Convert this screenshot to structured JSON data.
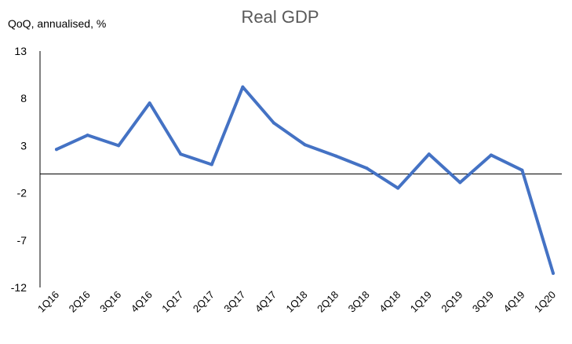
{
  "chart_data": {
    "type": "line",
    "title": "Real GDP",
    "ylabel": "QoQ, annualised, %",
    "xlabel": "",
    "categories": [
      "1Q16",
      "2Q16",
      "3Q16",
      "4Q16",
      "1Q17",
      "2Q17",
      "3Q17",
      "4Q17",
      "1Q18",
      "2Q18",
      "3Q18",
      "4Q18",
      "1Q19",
      "2Q19",
      "3Q19",
      "4Q19",
      "1Q20"
    ],
    "series": [
      {
        "name": "Real GDP",
        "color": "#4472C4",
        "values": [
          2.6,
          4.1,
          3.0,
          7.5,
          2.1,
          1.0,
          9.2,
          5.4,
          3.1,
          1.9,
          0.6,
          -1.5,
          2.1,
          -0.9,
          2.0,
          0.4,
          -10.5
        ]
      }
    ],
    "ylim": [
      -12,
      13
    ],
    "yticks": [
      "13",
      "8",
      "3",
      "-2",
      "-7",
      "-12"
    ],
    "ytick_values": [
      13,
      8,
      3,
      -2,
      -7,
      -12
    ],
    "zero_line": true,
    "grid": false
  }
}
